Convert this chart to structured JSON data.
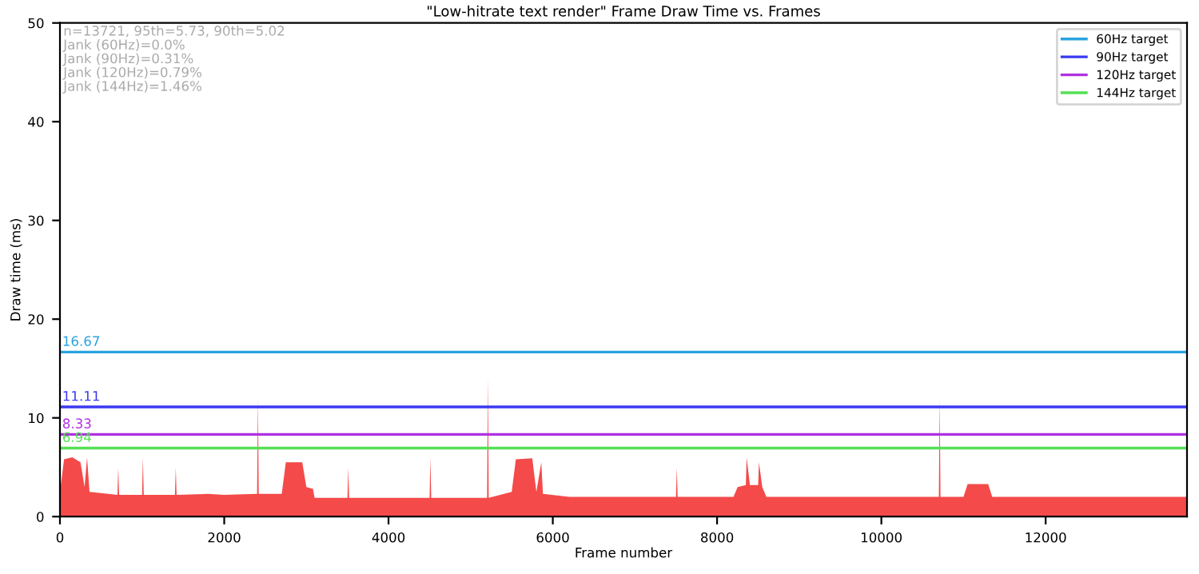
{
  "chart_data": {
    "type": "area",
    "title": "\"Low-hitrate text render\" Frame Draw Time vs. Frames",
    "xlabel": "Frame number",
    "ylabel": "Draw time (ms)",
    "xlim": [
      0,
      13721
    ],
    "xticks": [
      0,
      2000,
      4000,
      6000,
      8000,
      10000,
      12000
    ],
    "ylim": [
      0,
      50
    ],
    "yticks": [
      0,
      10,
      20,
      30,
      40,
      50
    ],
    "grid": false,
    "legend": "top right",
    "annotations": [
      "n=13721, 95th=5.73, 90th=5.02",
      "Jank (60Hz)=0.0%",
      "Jank (90Hz)=0.31%",
      "Jank (120Hz)=0.79%",
      "Jank (144Hz)=1.46%"
    ],
    "series": [
      {
        "color": "#f44a4a",
        "x": [
          0,
          50,
          150,
          250,
          300,
          330,
          360,
          700,
          710,
          720,
          1000,
          1010,
          1020,
          1400,
          1410,
          1420,
          1800,
          2000,
          2400,
          2410,
          2420,
          2700,
          2750,
          2950,
          3000,
          3080,
          3100,
          3500,
          3510,
          3520,
          4000,
          4500,
          4510,
          4520,
          5000,
          5200,
          5210,
          5220,
          5500,
          5550,
          5750,
          5800,
          5860,
          5880,
          6200,
          6500,
          7000,
          7500,
          7510,
          7520,
          8000,
          8200,
          8250,
          8350,
          8360,
          8400,
          8500,
          8510,
          8550,
          8600,
          9000,
          9500,
          10000,
          10500,
          10700,
          10710,
          10720,
          11000,
          11050,
          11300,
          11350,
          12000,
          12500,
          13000,
          13500,
          13721
        ],
        "values": [
          2.5,
          5.8,
          6.0,
          5.5,
          3.0,
          6.0,
          2.5,
          2.2,
          5.0,
          2.2,
          2.2,
          6.0,
          2.2,
          2.2,
          5.0,
          2.2,
          2.3,
          2.2,
          2.3,
          12.0,
          2.3,
          2.3,
          5.5,
          5.5,
          3.0,
          2.8,
          1.9,
          1.9,
          5.0,
          1.9,
          1.9,
          1.9,
          6.0,
          1.9,
          1.9,
          1.9,
          14.0,
          1.9,
          2.5,
          5.8,
          5.9,
          2.5,
          5.5,
          2.3,
          2.0,
          2.0,
          2.0,
          2.0,
          5.0,
          2.0,
          2.0,
          2.0,
          3.0,
          3.2,
          6.0,
          3.2,
          3.2,
          5.5,
          3.0,
          2.0,
          2.0,
          2.0,
          2.0,
          2.0,
          2.0,
          12.0,
          2.0,
          2.0,
          3.3,
          3.3,
          2.0,
          2.0,
          2.0,
          2.0,
          2.0,
          2.0
        ]
      },
      {
        "type": "line",
        "name": "60Hz target",
        "color": "#2aa3df",
        "x": [
          0,
          13721
        ],
        "values": [
          16.67,
          16.67
        ],
        "value_labels": [
          "16.67",
          null
        ]
      },
      {
        "type": "line",
        "name": "90Hz target",
        "color": "#3a3af0",
        "x": [
          0,
          13721
        ],
        "values": [
          11.11,
          11.11
        ],
        "value_labels": [
          "11.11",
          null
        ]
      },
      {
        "type": "line",
        "name": "120Hz target",
        "color": "#b030e0",
        "x": [
          0,
          13721
        ],
        "values": [
          8.33,
          8.33
        ],
        "value_labels": [
          "8.33",
          null
        ]
      },
      {
        "type": "line",
        "name": "144Hz target",
        "color": "#55e055",
        "x": [
          0,
          13721
        ],
        "values": [
          6.94,
          6.94
        ],
        "value_labels": [
          "6.94",
          null
        ]
      }
    ]
  }
}
